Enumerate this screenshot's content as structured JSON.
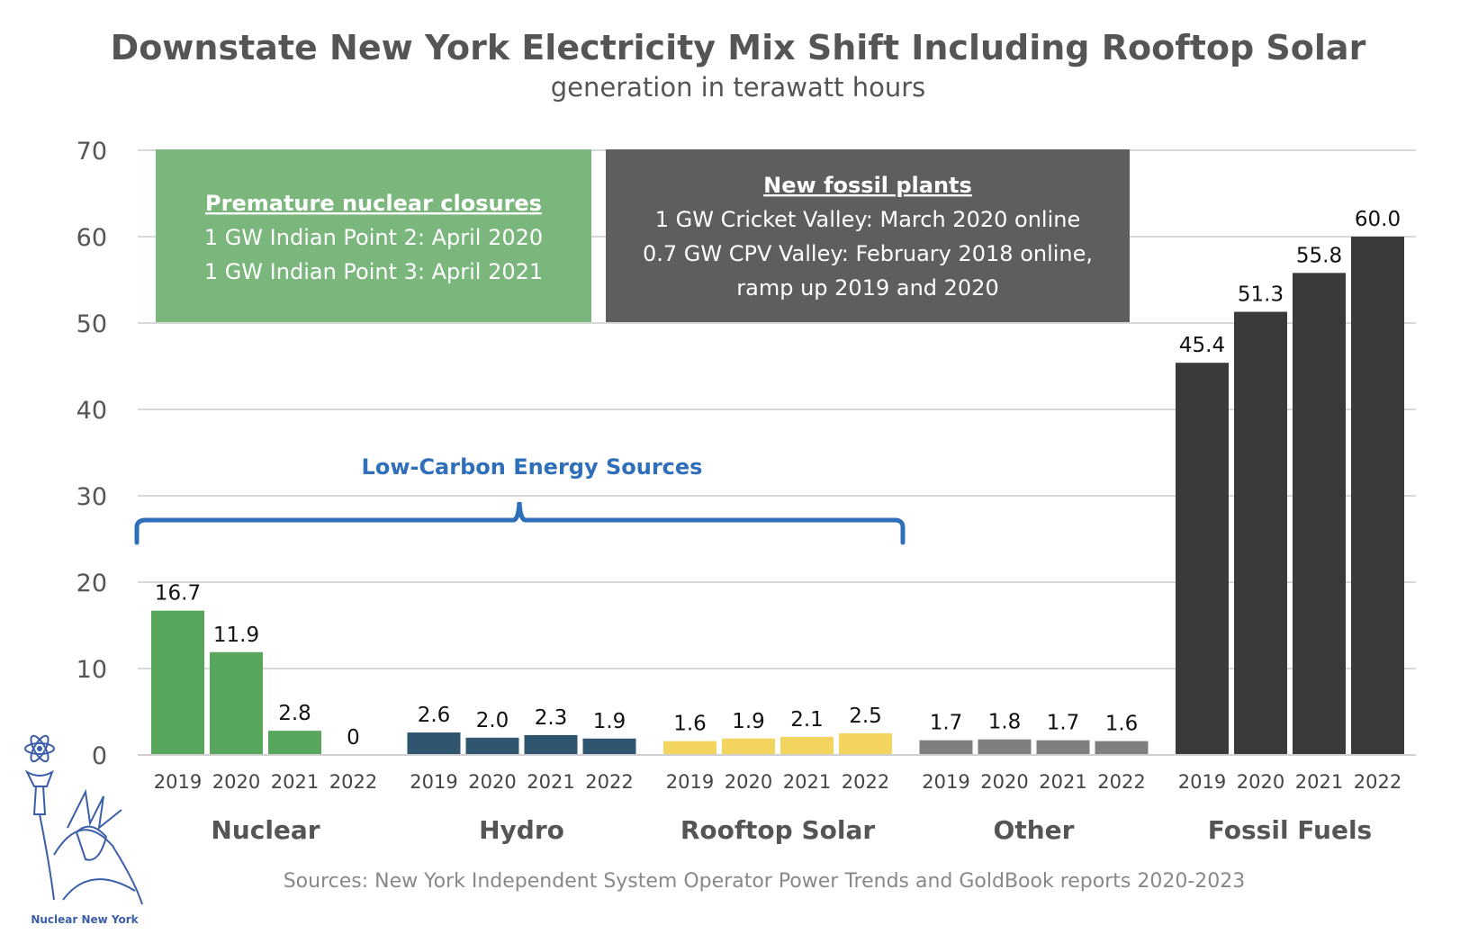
{
  "chart_data": {
    "type": "bar",
    "title": "Downstate New York Electricity Mix Shift Including Rooftop Solar",
    "subtitle": "generation in terawatt hours",
    "ylim": [
      0,
      70
    ],
    "yticks": [
      "0",
      "10",
      "20",
      "30",
      "40",
      "50",
      "60",
      "70"
    ],
    "grid": true,
    "groups": [
      {
        "name": "Nuclear",
        "color": "#58a55c",
        "years": [
          "2019",
          "2020",
          "2021",
          "2022"
        ],
        "values": [
          16.7,
          11.9,
          2.8,
          0
        ],
        "labels": [
          "16.7",
          "11.9",
          "2.8",
          "0"
        ]
      },
      {
        "name": "Hydro",
        "color": "#2f566e",
        "years": [
          "2019",
          "2020",
          "2021",
          "2022"
        ],
        "values": [
          2.6,
          2.0,
          2.3,
          1.9
        ],
        "labels": [
          "2.6",
          "2.0",
          "2.3",
          "1.9"
        ]
      },
      {
        "name": "Rooftop Solar",
        "color": "#f2d45e",
        "years": [
          "2019",
          "2020",
          "2021",
          "2022"
        ],
        "values": [
          1.6,
          1.9,
          2.1,
          2.5
        ],
        "labels": [
          "1.6",
          "1.9",
          "2.1",
          "2.5"
        ]
      },
      {
        "name": "Other",
        "color": "#7f7f7f",
        "years": [
          "2019",
          "2020",
          "2021",
          "2022"
        ],
        "values": [
          1.7,
          1.8,
          1.7,
          1.6
        ],
        "labels": [
          "1.7",
          "1.8",
          "1.7",
          "1.6"
        ]
      },
      {
        "name": "Fossil Fuels",
        "color": "#3a3a3a",
        "years": [
          "2019",
          "2020",
          "2021",
          "2022"
        ],
        "values": [
          45.4,
          51.3,
          55.8,
          60.0
        ],
        "labels": [
          "45.4",
          "51.3",
          "55.8",
          "60.0"
        ]
      }
    ],
    "annotations": {
      "nuclear_box": {
        "heading": "Premature nuclear closures",
        "lines": [
          "1 GW Indian Point 2: April 2020",
          "1 GW Indian Point 3: April 2021"
        ],
        "color": "#7bb77d"
      },
      "fossil_box": {
        "heading": "New fossil plants",
        "lines": [
          "1 GW Cricket Valley: March 2020 online",
          "0.7 GW CPV Valley: February 2018 online,",
          "ramp up 2019 and 2020"
        ],
        "color": "#5e5e5e"
      },
      "brace_label": "Low-Carbon Energy Sources",
      "brace_color": "#2f6fba"
    },
    "source": "Sources: New York Independent System Operator Power Trends and GoldBook reports 2020-2023"
  },
  "logo": {
    "text": "Nuclear New York"
  }
}
